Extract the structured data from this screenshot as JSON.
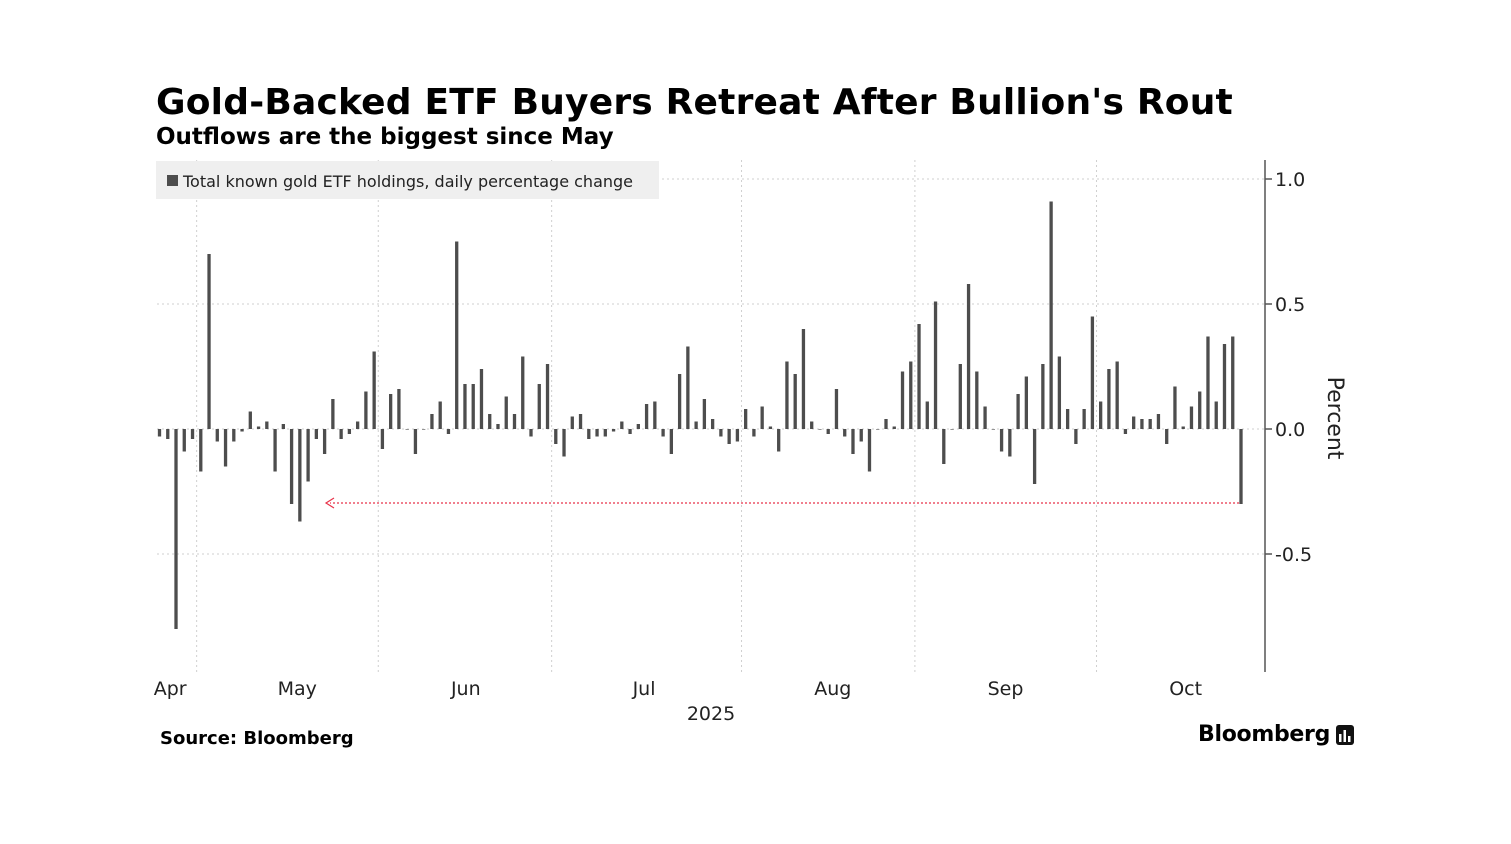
{
  "header": {
    "title": "Gold-Backed ETF Buyers Retreat After Bullion's Rout",
    "subtitle": "Outflows are the biggest since May"
  },
  "footer": {
    "source": "Source: Bloomberg",
    "brand": "Bloomberg",
    "brand_icon": "bloomberg-logo-icon"
  },
  "colors": {
    "bar": "#4d4d4d",
    "grid": "#cfcfcf",
    "axis": "#555555",
    "legend_bg": "#efefef",
    "arrow": "#e8334a"
  },
  "chart_data": {
    "type": "bar",
    "title": "Gold-Backed ETF Buyers Retreat After Bullion's Rout",
    "subtitle": "Outflows are the biggest since May",
    "legend": [
      "Total known gold ETF holdings, daily percentage change"
    ],
    "ylabel": "Percent",
    "xlabel": "2025",
    "ylim": [
      -0.97,
      1.07
    ],
    "yticks": [
      1.0,
      0.5,
      0.0,
      -0.5
    ],
    "ytick_labels": [
      "1.0",
      "0.5",
      "0.0",
      "-0.5"
    ],
    "month_labels": [
      "Apr",
      "May",
      "Jun",
      "Jul",
      "Aug",
      "Sep",
      "Oct"
    ],
    "month_label_index": [
      1,
      16,
      37,
      59,
      81,
      102,
      124
    ],
    "month_gridline_index": [
      4.5,
      26.5,
      47.5,
      70.5,
      91.5,
      113.5
    ],
    "annotation": "Outflow of about -0.3 percent, the biggest since May",
    "values": [
      -0.03,
      -0.04,
      -0.8,
      -0.09,
      -0.04,
      -0.17,
      0.7,
      -0.05,
      -0.15,
      -0.05,
      -0.01,
      0.07,
      0.01,
      0.03,
      -0.17,
      0.02,
      -0.3,
      -0.37,
      -0.21,
      -0.04,
      -0.1,
      0.12,
      -0.04,
      -0.02,
      0.03,
      0.15,
      0.31,
      -0.08,
      0.14,
      0.16,
      0.0,
      -0.1,
      0.0,
      0.06,
      0.11,
      -0.02,
      0.75,
      0.18,
      0.18,
      0.24,
      0.06,
      0.02,
      0.13,
      0.06,
      0.29,
      -0.03,
      0.18,
      0.26,
      -0.06,
      -0.11,
      0.05,
      0.06,
      -0.04,
      -0.03,
      -0.03,
      -0.01,
      0.03,
      -0.02,
      0.02,
      0.1,
      0.11,
      -0.03,
      -0.1,
      0.22,
      0.33,
      0.03,
      0.12,
      0.04,
      -0.03,
      -0.06,
      -0.05,
      0.08,
      -0.03,
      0.09,
      0.01,
      -0.09,
      0.27,
      0.22,
      0.4,
      0.03,
      0.0,
      -0.02,
      0.16,
      -0.03,
      -0.1,
      -0.05,
      -0.17,
      0.0,
      0.04,
      0.01,
      0.23,
      0.27,
      0.42,
      0.11,
      0.51,
      -0.14,
      0.0,
      0.26,
      0.58,
      0.23,
      0.09,
      0.0,
      -0.09,
      -0.11,
      0.14,
      0.21,
      -0.22,
      0.26,
      0.91,
      0.29,
      0.08,
      -0.06,
      0.08,
      0.45,
      0.11,
      0.24,
      0.27,
      -0.02,
      0.05,
      0.04,
      0.04,
      0.06,
      -0.06,
      0.17,
      0.01,
      0.09,
      0.15,
      0.37,
      0.11,
      0.34,
      0.37,
      -0.3
    ]
  }
}
